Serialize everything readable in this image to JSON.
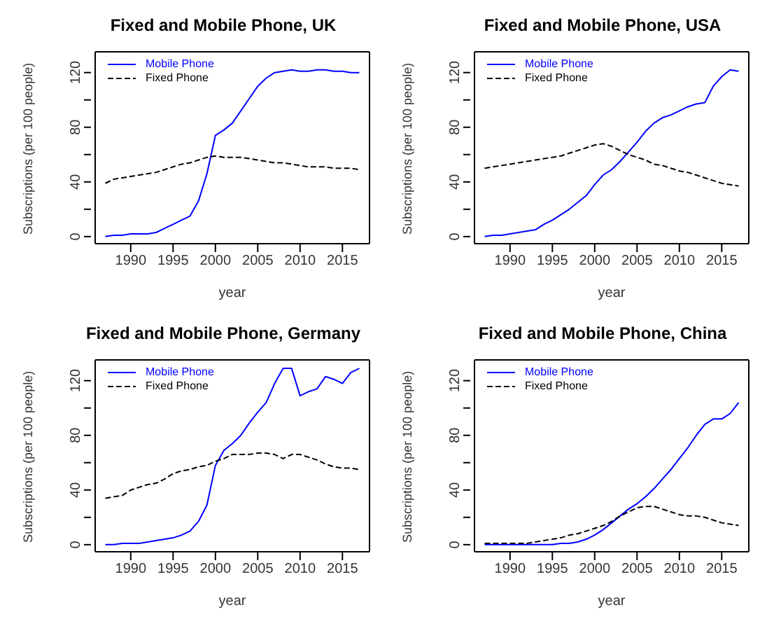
{
  "chart_data": [
    {
      "type": "line",
      "title": "Fixed and Mobile Phone, UK",
      "xlabel": "year",
      "ylabel": "Subscriptions (per 100 people)",
      "x": [
        1987,
        1988,
        1989,
        1990,
        1991,
        1992,
        1993,
        1994,
        1995,
        1996,
        1997,
        1998,
        1999,
        2000,
        2001,
        2002,
        2003,
        2004,
        2005,
        2006,
        2007,
        2008,
        2009,
        2010,
        2011,
        2012,
        2013,
        2014,
        2015,
        2016,
        2017
      ],
      "xlim": [
        1985.8,
        2018.2
      ],
      "ylim": [
        -5.2,
        135.2
      ],
      "xticks": [
        1990,
        1995,
        2000,
        2005,
        2010,
        2015
      ],
      "yticks": [
        0,
        {
          "value": 20,
          "label": null
        },
        40,
        {
          "value": 60,
          "label": null
        },
        80,
        {
          "value": 100,
          "label": null
        },
        120
      ],
      "legend": "top left",
      "series": [
        {
          "name": "Mobile Phone",
          "color": "#0000ff",
          "line_style": "solid",
          "values": [
            0,
            1,
            1,
            2,
            2,
            2,
            3,
            6,
            9,
            12,
            15,
            26,
            46,
            74,
            78,
            83,
            92,
            101,
            110,
            116,
            120,
            121,
            122,
            121,
            121,
            122,
            122,
            121,
            121,
            120,
            120
          ]
        },
        {
          "name": "Fixed Phone",
          "color": "#000000",
          "line_style": "dashed",
          "values": [
            39,
            42,
            43,
            44,
            45,
            46,
            47,
            49,
            51,
            53,
            54,
            56,
            58,
            59,
            58,
            58,
            58,
            57,
            56,
            55,
            54,
            54,
            53,
            52,
            51,
            51,
            51,
            50,
            50,
            50,
            49
          ]
        }
      ]
    },
    {
      "type": "line",
      "title": "Fixed and Mobile Phone, USA",
      "xlabel": "year",
      "ylabel": "Subscriptions (per 100 people)",
      "x": [
        1987,
        1988,
        1989,
        1990,
        1991,
        1992,
        1993,
        1994,
        1995,
        1996,
        1997,
        1998,
        1999,
        2000,
        2001,
        2002,
        2003,
        2004,
        2005,
        2006,
        2007,
        2008,
        2009,
        2010,
        2011,
        2012,
        2013,
        2014,
        2015,
        2016,
        2017
      ],
      "xlim": [
        1985.8,
        2018.2
      ],
      "ylim": [
        -5.2,
        135.2
      ],
      "xticks": [
        1990,
        1995,
        2000,
        2005,
        2010,
        2015
      ],
      "yticks": [
        0,
        {
          "value": 20,
          "label": null
        },
        40,
        {
          "value": 60,
          "label": null
        },
        80,
        {
          "value": 100,
          "label": null
        },
        120
      ],
      "legend": "top left",
      "series": [
        {
          "name": "Mobile Phone",
          "color": "#0000ff",
          "line_style": "solid",
          "values": [
            0,
            1,
            1,
            2,
            3,
            4,
            5,
            9,
            12,
            16,
            20,
            25,
            30,
            38,
            45,
            49,
            55,
            62,
            69,
            77,
            83,
            87,
            89,
            92,
            95,
            97,
            98,
            110,
            117,
            122,
            121
          ]
        },
        {
          "name": "Fixed Phone",
          "color": "#000000",
          "line_style": "dashed",
          "values": [
            50,
            51,
            52,
            53,
            54,
            55,
            56,
            57,
            58,
            59,
            61,
            63,
            65,
            67,
            68,
            66,
            63,
            60,
            58,
            56,
            53,
            52,
            50,
            48,
            47,
            45,
            43,
            41,
            39,
            38,
            37
          ]
        }
      ]
    },
    {
      "type": "line",
      "title": "Fixed and Mobile Phone, Germany",
      "xlabel": "year",
      "ylabel": "Subscriptions (per 100 people)",
      "x": [
        1987,
        1988,
        1989,
        1990,
        1991,
        1992,
        1993,
        1994,
        1995,
        1996,
        1997,
        1998,
        1999,
        2000,
        2001,
        2002,
        2003,
        2004,
        2005,
        2006,
        2007,
        2008,
        2009,
        2010,
        2011,
        2012,
        2013,
        2014,
        2015,
        2016,
        2017
      ],
      "xlim": [
        1985.8,
        2018.2
      ],
      "ylim": [
        -5.2,
        135.2
      ],
      "xticks": [
        1990,
        1995,
        2000,
        2005,
        2010,
        2015
      ],
      "yticks": [
        0,
        {
          "value": 20,
          "label": null
        },
        40,
        {
          "value": 60,
          "label": null
        },
        80,
        {
          "value": 100,
          "label": null
        },
        120
      ],
      "legend": "top left",
      "series": [
        {
          "name": "Mobile Phone",
          "color": "#0000ff",
          "line_style": "solid",
          "values": [
            0,
            0,
            1,
            1,
            1,
            2,
            3,
            4,
            5,
            7,
            10,
            17,
            29,
            58,
            69,
            74,
            80,
            89,
            97,
            104,
            118,
            129,
            129,
            109,
            112,
            114,
            123,
            121,
            118,
            126,
            129
          ]
        },
        {
          "name": "Fixed Phone",
          "color": "#000000",
          "line_style": "dashed",
          "values": [
            34,
            35,
            36,
            40,
            42,
            44,
            45,
            48,
            52,
            54,
            55,
            57,
            58,
            61,
            63,
            66,
            66,
            66,
            67,
            67,
            66,
            63,
            66,
            66,
            64,
            62,
            59,
            57,
            56,
            56,
            55
          ]
        }
      ]
    },
    {
      "type": "line",
      "title": "Fixed and Mobile Phone, China",
      "xlabel": "year",
      "ylabel": "Subscriptions (per 100 people)",
      "x": [
        1987,
        1988,
        1989,
        1990,
        1991,
        1992,
        1993,
        1994,
        1995,
        1996,
        1997,
        1998,
        1999,
        2000,
        2001,
        2002,
        2003,
        2004,
        2005,
        2006,
        2007,
        2008,
        2009,
        2010,
        2011,
        2012,
        2013,
        2014,
        2015,
        2016,
        2017
      ],
      "xlim": [
        1985.8,
        2018.2
      ],
      "ylim": [
        -5.2,
        135.2
      ],
      "xticks": [
        1990,
        1995,
        2000,
        2005,
        2010,
        2015
      ],
      "yticks": [
        0,
        {
          "value": 20,
          "label": null
        },
        40,
        {
          "value": 60,
          "label": null
        },
        80,
        {
          "value": 100,
          "label": null
        },
        120
      ],
      "legend": "top left",
      "series": [
        {
          "name": "Mobile Phone",
          "color": "#0000ff",
          "line_style": "solid",
          "values": [
            0,
            0,
            0,
            0,
            0,
            0,
            0,
            0,
            0,
            1,
            1,
            2,
            4,
            7,
            11,
            16,
            21,
            26,
            30,
            35,
            41,
            48,
            55,
            63,
            71,
            80,
            88,
            92,
            92,
            96,
            104
          ]
        },
        {
          "name": "Fixed Phone",
          "color": "#000000",
          "line_style": "dashed",
          "values": [
            1,
            1,
            1,
            1,
            1,
            1,
            2,
            3,
            4,
            5,
            7,
            8,
            10,
            12,
            14,
            17,
            21,
            24,
            27,
            28,
            28,
            26,
            24,
            22,
            21,
            21,
            20,
            18,
            16,
            15,
            14
          ]
        }
      ]
    }
  ]
}
